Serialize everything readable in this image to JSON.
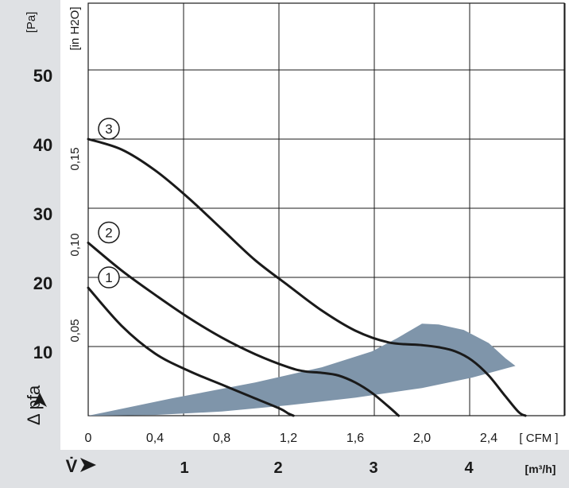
{
  "chart_data": {
    "type": "line",
    "colors": {
      "curve": "#1a1a1a",
      "operating_range": "#7f95aa",
      "grid": "#1a1a1a",
      "band": "#dfe1e4"
    },
    "axes": {
      "y_pa": {
        "unit": "[Pa]",
        "symbol": "Δ pfa",
        "ticks": [
          "10",
          "20",
          "30",
          "40",
          "50"
        ],
        "range": [
          0,
          50
        ]
      },
      "y_inh2o": {
        "unit": "[in H2O]",
        "ticks": [
          "0,05",
          "0,10",
          "0,15"
        ]
      },
      "x_cfm": {
        "unit": "[ CFM ]",
        "ticks": [
          "0",
          "0,4",
          "0,8",
          "1,2",
          "1,6",
          "2,0",
          "2,4"
        ],
        "range": [
          0,
          2.6
        ]
      },
      "x_m3h": {
        "unit": "[m³/h]",
        "symbol": "V̇",
        "ticks": [
          "1",
          "2",
          "3",
          "4"
        ]
      }
    },
    "series": [
      {
        "label": "1",
        "x": [
          0,
          0.2,
          0.4,
          0.6,
          0.8,
          1.0,
          1.15,
          1.2,
          1.23
        ],
        "y": [
          18.5,
          13,
          9,
          6.5,
          4.5,
          2.5,
          1,
          0.3,
          0
        ]
      },
      {
        "label": "2",
        "x": [
          0,
          0.2,
          0.4,
          0.6,
          0.8,
          1.0,
          1.2,
          1.3,
          1.4,
          1.5,
          1.6,
          1.7,
          1.8,
          1.86
        ],
        "y": [
          25,
          21,
          17.5,
          14.2,
          11.3,
          8.9,
          7,
          6.4,
          6.2,
          5.8,
          4.8,
          3.3,
          1.3,
          0
        ]
      },
      {
        "label": "3",
        "x": [
          0,
          0.2,
          0.4,
          0.6,
          0.8,
          1.0,
          1.2,
          1.4,
          1.6,
          1.8,
          2.0,
          2.1,
          2.2,
          2.3,
          2.4,
          2.5,
          2.58,
          2.62
        ],
        "y": [
          40,
          38.5,
          35.5,
          31.5,
          27,
          22.5,
          18.8,
          15.2,
          12.3,
          10.6,
          10.2,
          9.9,
          9.3,
          8,
          5.8,
          2.8,
          0.5,
          0
        ]
      }
    ],
    "operating_range": {
      "upper": {
        "x": [
          0,
          0.5,
          1.0,
          1.4,
          1.7,
          1.85,
          1.95,
          2.0,
          2.1,
          2.25,
          2.4,
          2.5,
          2.56
        ],
        "y": [
          0,
          2.5,
          4.8,
          7,
          9.3,
          11.2,
          12.6,
          13.3,
          13.2,
          12.4,
          10.5,
          8.3,
          7.2
        ]
      },
      "lower": {
        "x": [
          2.56,
          2.3,
          2.0,
          1.6,
          1.2,
          0.8,
          0.4,
          0
        ],
        "y": [
          7.2,
          5.5,
          4,
          2.6,
          1.5,
          0.6,
          0.1,
          0
        ]
      }
    }
  }
}
